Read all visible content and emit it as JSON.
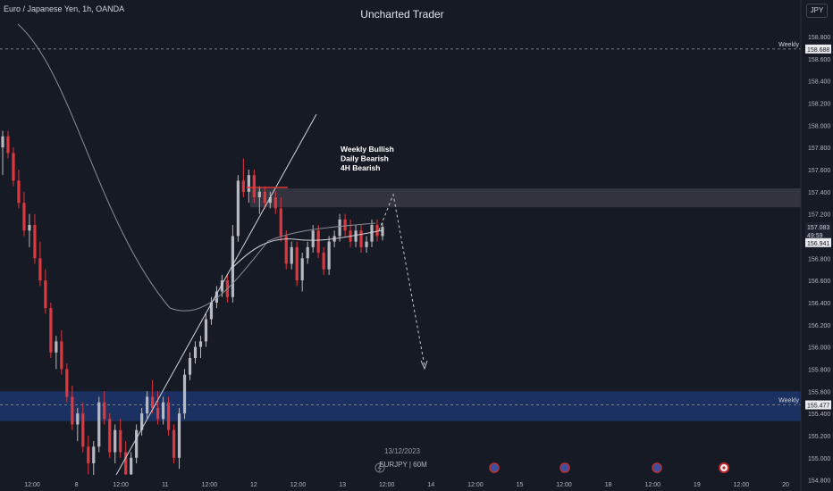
{
  "header": {
    "symbol_title": "Euro / Japanese Yen, 1h, OANDA",
    "watermark": "Uncharted Trader",
    "currency": "JPY"
  },
  "annotation": {
    "bias_lines": [
      "Weekly Bullish",
      "Daily Bearish",
      "4H Bearish"
    ]
  },
  "footer": {
    "date_label": "13/12/2023",
    "symbol_label": "EURJPY | 60M"
  },
  "colors": {
    "background": "#161a25",
    "bull_candle": "#b7b9bf",
    "bear_candle": "#e0363c",
    "weekly_zone": "#1e3a75",
    "supply_zone": "#4a4d57"
  },
  "chart_data": {
    "type": "candlestick",
    "y_axis": {
      "range": [
        154.7,
        159.13
      ],
      "ticks": [
        "158.800",
        "158.600",
        "158.400",
        "158.200",
        "158.000",
        "157.800",
        "157.600",
        "157.400",
        "157.200",
        "157.000",
        "156.800",
        "156.600",
        "156.400",
        "156.200",
        "156.000",
        "155.800",
        "155.600",
        "155.400",
        "155.200",
        "155.000",
        "154.800"
      ],
      "position": "right"
    },
    "x_axis": {
      "ticks": [
        "12:00",
        "8",
        "12:00",
        "11",
        "12:00",
        "12",
        "12:00",
        "13",
        "12:00",
        "14",
        "12:00",
        "15",
        "12:00",
        "18",
        "12:00",
        "19",
        "12:00",
        "20"
      ]
    },
    "price_labels": [
      {
        "text": "158.688",
        "value": 158.688
      },
      {
        "text": "157.083",
        "value": 157.083
      },
      {
        "text": "49:59",
        "value": 157.01
      },
      {
        "text": "156.941",
        "value": 156.941
      },
      {
        "text": "155.477",
        "value": 155.477
      }
    ],
    "levels": [
      {
        "label": "Weekly",
        "value": 158.688
      },
      {
        "label": "Weekly",
        "value": 155.477
      }
    ],
    "zones": [
      {
        "name": "Weekly demand",
        "from": 155.33,
        "to": 155.6
      },
      {
        "name": "Supply",
        "from": 157.26,
        "to": 157.43
      }
    ],
    "ohlc": [
      [
        157.8,
        157.95,
        157.55,
        157.9
      ],
      [
        157.9,
        157.95,
        157.7,
        157.75
      ],
      [
        157.75,
        157.8,
        157.45,
        157.5
      ],
      [
        157.5,
        157.6,
        157.25,
        157.3
      ],
      [
        157.3,
        157.4,
        157.0,
        157.05
      ],
      [
        157.05,
        157.2,
        156.9,
        157.1
      ],
      [
        157.1,
        157.2,
        156.75,
        156.8
      ],
      [
        156.8,
        156.95,
        156.55,
        156.6
      ],
      [
        156.6,
        156.7,
        156.3,
        156.35
      ],
      [
        156.35,
        156.4,
        155.9,
        155.95
      ],
      [
        155.95,
        156.1,
        155.8,
        156.05
      ],
      [
        156.05,
        156.15,
        155.75,
        155.8
      ],
      [
        155.8,
        155.85,
        155.5,
        155.55
      ],
      [
        155.55,
        155.65,
        155.25,
        155.3
      ],
      [
        155.3,
        155.45,
        155.15,
        155.4
      ],
      [
        155.4,
        155.5,
        155.05,
        155.1
      ],
      [
        155.1,
        155.2,
        154.85,
        154.95
      ],
      [
        154.95,
        155.15,
        154.8,
        155.1
      ],
      [
        155.1,
        155.55,
        155.05,
        155.5
      ],
      [
        155.5,
        155.6,
        155.3,
        155.35
      ],
      [
        155.35,
        155.4,
        155.0,
        155.05
      ],
      [
        155.05,
        155.3,
        154.95,
        155.25
      ],
      [
        155.25,
        155.35,
        155.0,
        155.05
      ],
      [
        155.05,
        155.15,
        154.8,
        154.85
      ],
      [
        154.85,
        155.05,
        154.75,
        155.0
      ],
      [
        155.0,
        155.3,
        154.95,
        155.25
      ],
      [
        155.25,
        155.45,
        155.2,
        155.4
      ],
      [
        155.4,
        155.6,
        155.35,
        155.55
      ],
      [
        155.55,
        155.7,
        155.4,
        155.45
      ],
      [
        155.45,
        155.6,
        155.3,
        155.35
      ],
      [
        155.35,
        155.55,
        155.3,
        155.5
      ],
      [
        155.5,
        155.55,
        155.2,
        155.25
      ],
      [
        155.25,
        155.3,
        154.95,
        155.0
      ],
      [
        155.0,
        155.45,
        154.9,
        155.4
      ],
      [
        155.4,
        155.8,
        155.35,
        155.75
      ],
      [
        155.75,
        155.95,
        155.7,
        155.9
      ],
      [
        155.9,
        156.05,
        155.85,
        156.0
      ],
      [
        156.0,
        156.1,
        155.9,
        156.05
      ],
      [
        156.05,
        156.3,
        156.0,
        156.25
      ],
      [
        156.25,
        156.45,
        156.2,
        156.4
      ],
      [
        156.4,
        156.55,
        156.35,
        156.5
      ],
      [
        156.5,
        156.65,
        156.45,
        156.6
      ],
      [
        156.6,
        156.65,
        156.4,
        156.45
      ],
      [
        156.45,
        157.1,
        156.4,
        157.0
      ],
      [
        157.0,
        157.55,
        156.95,
        157.5
      ],
      [
        157.5,
        157.7,
        157.35,
        157.4
      ],
      [
        157.4,
        157.6,
        157.3,
        157.55
      ],
      [
        157.55,
        157.6,
        157.3,
        157.35
      ],
      [
        157.35,
        157.45,
        157.2,
        157.4
      ],
      [
        157.4,
        157.45,
        157.25,
        157.3
      ],
      [
        157.3,
        157.4,
        157.25,
        157.35
      ],
      [
        157.35,
        157.4,
        157.2,
        157.25
      ],
      [
        157.25,
        157.35,
        156.95,
        157.0
      ],
      [
        157.0,
        157.05,
        156.7,
        156.75
      ],
      [
        156.75,
        156.95,
        156.7,
        156.9
      ],
      [
        156.9,
        156.95,
        156.55,
        156.6
      ],
      [
        156.6,
        156.85,
        156.5,
        156.8
      ],
      [
        156.8,
        156.95,
        156.75,
        156.9
      ],
      [
        156.9,
        157.1,
        156.85,
        157.05
      ],
      [
        157.05,
        157.1,
        156.8,
        156.85
      ],
      [
        156.85,
        156.9,
        156.65,
        156.7
      ],
      [
        156.7,
        157.0,
        156.65,
        156.95
      ],
      [
        156.95,
        157.05,
        156.9,
        157.0
      ],
      [
        157.0,
        157.2,
        156.95,
        157.15
      ],
      [
        157.15,
        157.2,
        157.0,
        157.05
      ],
      [
        157.05,
        157.15,
        156.9,
        156.95
      ],
      [
        156.95,
        157.1,
        156.9,
        157.05
      ],
      [
        157.05,
        157.1,
        156.85,
        156.9
      ],
      [
        156.9,
        157.0,
        156.85,
        156.95
      ],
      [
        156.95,
        157.15,
        156.9,
        157.1
      ],
      [
        157.1,
        157.15,
        156.95,
        157.0
      ],
      [
        157.0,
        157.12,
        156.96,
        157.083
      ]
    ]
  }
}
